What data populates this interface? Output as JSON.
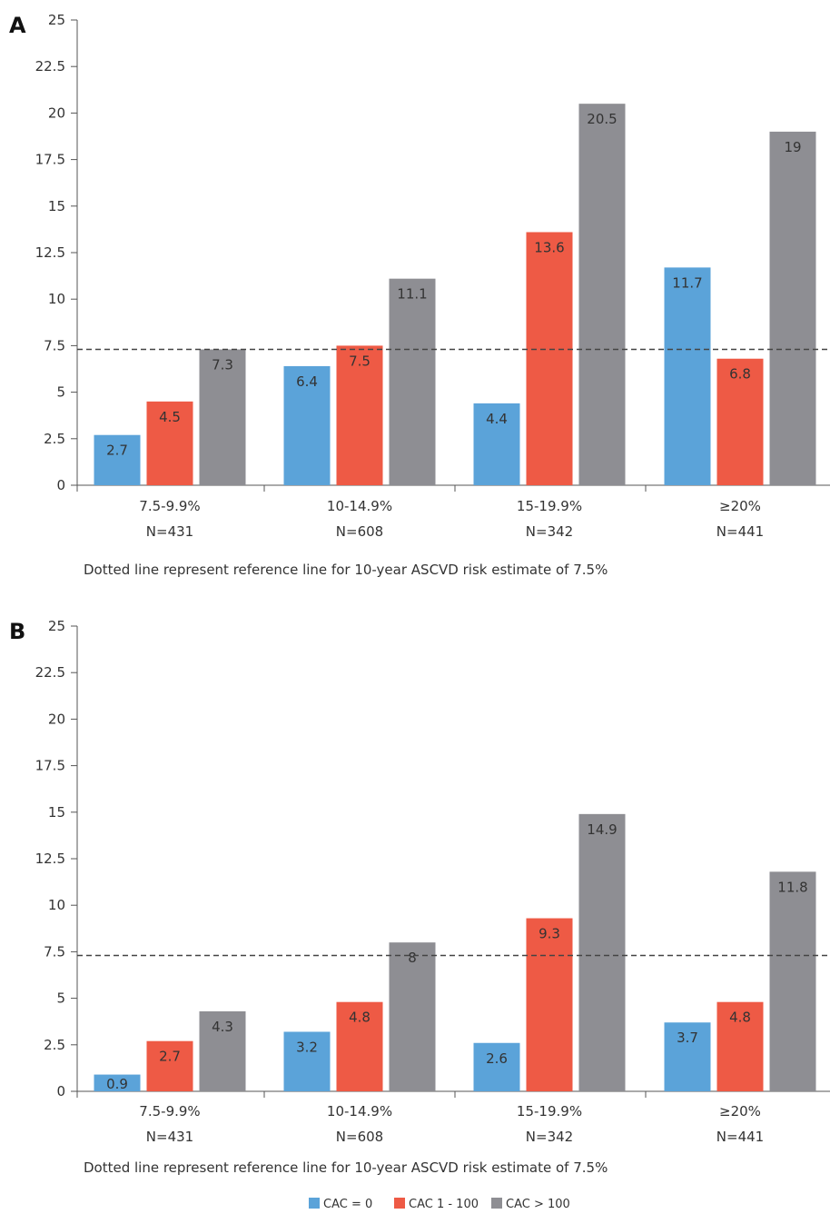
{
  "chart_data": [
    {
      "type": "bar",
      "panel": "A",
      "categories": [
        [
          "7.5-9.9%",
          "N=431"
        ],
        [
          "10-14.9%",
          "N=608"
        ],
        [
          "15-19.9%",
          "N=342"
        ],
        [
          "≥20%",
          "N=441"
        ]
      ],
      "series": [
        {
          "name": "CAC = 0",
          "color": "#5BA3D9",
          "values": [
            2.7,
            6.4,
            4.4,
            11.7
          ],
          "labels": [
            "2.7",
            "6.4",
            "4.4",
            "11.7"
          ]
        },
        {
          "name": "CAC 1 - 100",
          "color": "#EE5A45",
          "values": [
            4.5,
            7.5,
            13.6,
            6.8
          ],
          "labels": [
            "4.5",
            "7.5",
            "13.6",
            "6.8"
          ]
        },
        {
          "name": "CAC > 100",
          "color": "#8E8E93",
          "values": [
            7.3,
            11.1,
            20.5,
            19
          ],
          "labels": [
            "7.3",
            "11.1",
            "20.5",
            "19"
          ]
        }
      ],
      "yticks": [
        "0",
        "2.5",
        "5",
        "7.5",
        "10",
        "12.5",
        "15",
        "17.5",
        "20",
        "22.5",
        "25"
      ],
      "ylim": [
        0,
        25
      ],
      "reference_line": 7.3,
      "note": "Dotted line represent reference line for 10-year ASCVD risk estimate of 7.5%"
    },
    {
      "type": "bar",
      "panel": "B",
      "categories": [
        [
          "7.5-9.9%",
          "N=431"
        ],
        [
          "10-14.9%",
          "N=608"
        ],
        [
          "15-19.9%",
          "N=342"
        ],
        [
          "≥20%",
          "N=441"
        ]
      ],
      "series": [
        {
          "name": "CAC = 0",
          "color": "#5BA3D9",
          "values": [
            0.9,
            3.2,
            2.6,
            3.7
          ],
          "labels": [
            "0.9",
            "3.2",
            "2.6",
            "3.7"
          ]
        },
        {
          "name": "CAC 1 - 100",
          "color": "#EE5A45",
          "values": [
            2.7,
            4.8,
            9.3,
            4.8
          ],
          "labels": [
            "2.7",
            "4.8",
            "9.3",
            "4.8"
          ]
        },
        {
          "name": "CAC > 100",
          "color": "#8E8E93",
          "values": [
            4.3,
            8,
            14.9,
            11.8
          ],
          "labels": [
            "4.3",
            "8",
            "14.9",
            "11.8"
          ]
        }
      ],
      "yticks": [
        "0",
        "2.5",
        "5",
        "7.5",
        "10",
        "12.5",
        "15",
        "17.5",
        "20",
        "22.5",
        "25"
      ],
      "ylim": [
        0,
        25
      ],
      "reference_line": 7.3,
      "note": "Dotted line represent reference line for 10-year ASCVD risk estimate of 7.5%"
    }
  ],
  "legend": [
    {
      "label": "CAC = 0",
      "color": "#5BA3D9"
    },
    {
      "label": "CAC 1 - 100",
      "color": "#EE5A45"
    },
    {
      "label": "CAC > 100",
      "color": "#8E8E93"
    }
  ]
}
